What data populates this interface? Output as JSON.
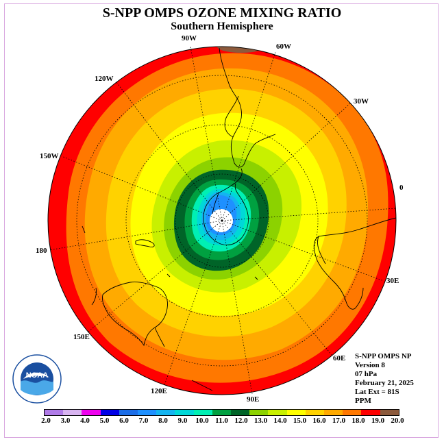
{
  "title": "S-NPP OMPS OZONE MIXING RATIO",
  "subtitle": "Southern Hemisphere",
  "longitude_labels": [
    "90W",
    "60W",
    "30W",
    "0",
    "30E",
    "60E",
    "90E",
    "120E",
    "150E",
    "180",
    "150W",
    "120W"
  ],
  "info": {
    "product": "S-NPP OMPS NP",
    "version": "Version 8",
    "level": "07 hPa",
    "date": "February 21, 2025",
    "lat_ext": "Lat Ext = 81S",
    "units": "PPM"
  },
  "logo": {
    "icon": "noaa-logo-icon",
    "text": "NOAA"
  },
  "colorbar": {
    "labels": [
      "2.0",
      "3.0",
      "4.0",
      "5.0",
      "6.0",
      "7.0",
      "8.0",
      "9.0",
      "10.0",
      "11.0",
      "12.0",
      "13.0",
      "14.0",
      "15.0",
      "16.0",
      "17.0",
      "18.0",
      "19.0",
      "20.0"
    ],
    "colors": [
      "#b07be8",
      "#d8b4f0",
      "#ee00ee",
      "#0000e6",
      "#1c6ee8",
      "#1e90ff",
      "#14b4f0",
      "#00d8d8",
      "#00f0b4",
      "#00a040",
      "#006428",
      "#8cd200",
      "#c8f000",
      "#ffff00",
      "#ffd200",
      "#ffaa00",
      "#ff7800",
      "#ff0000",
      "#8c5a3c"
    ]
  }
}
